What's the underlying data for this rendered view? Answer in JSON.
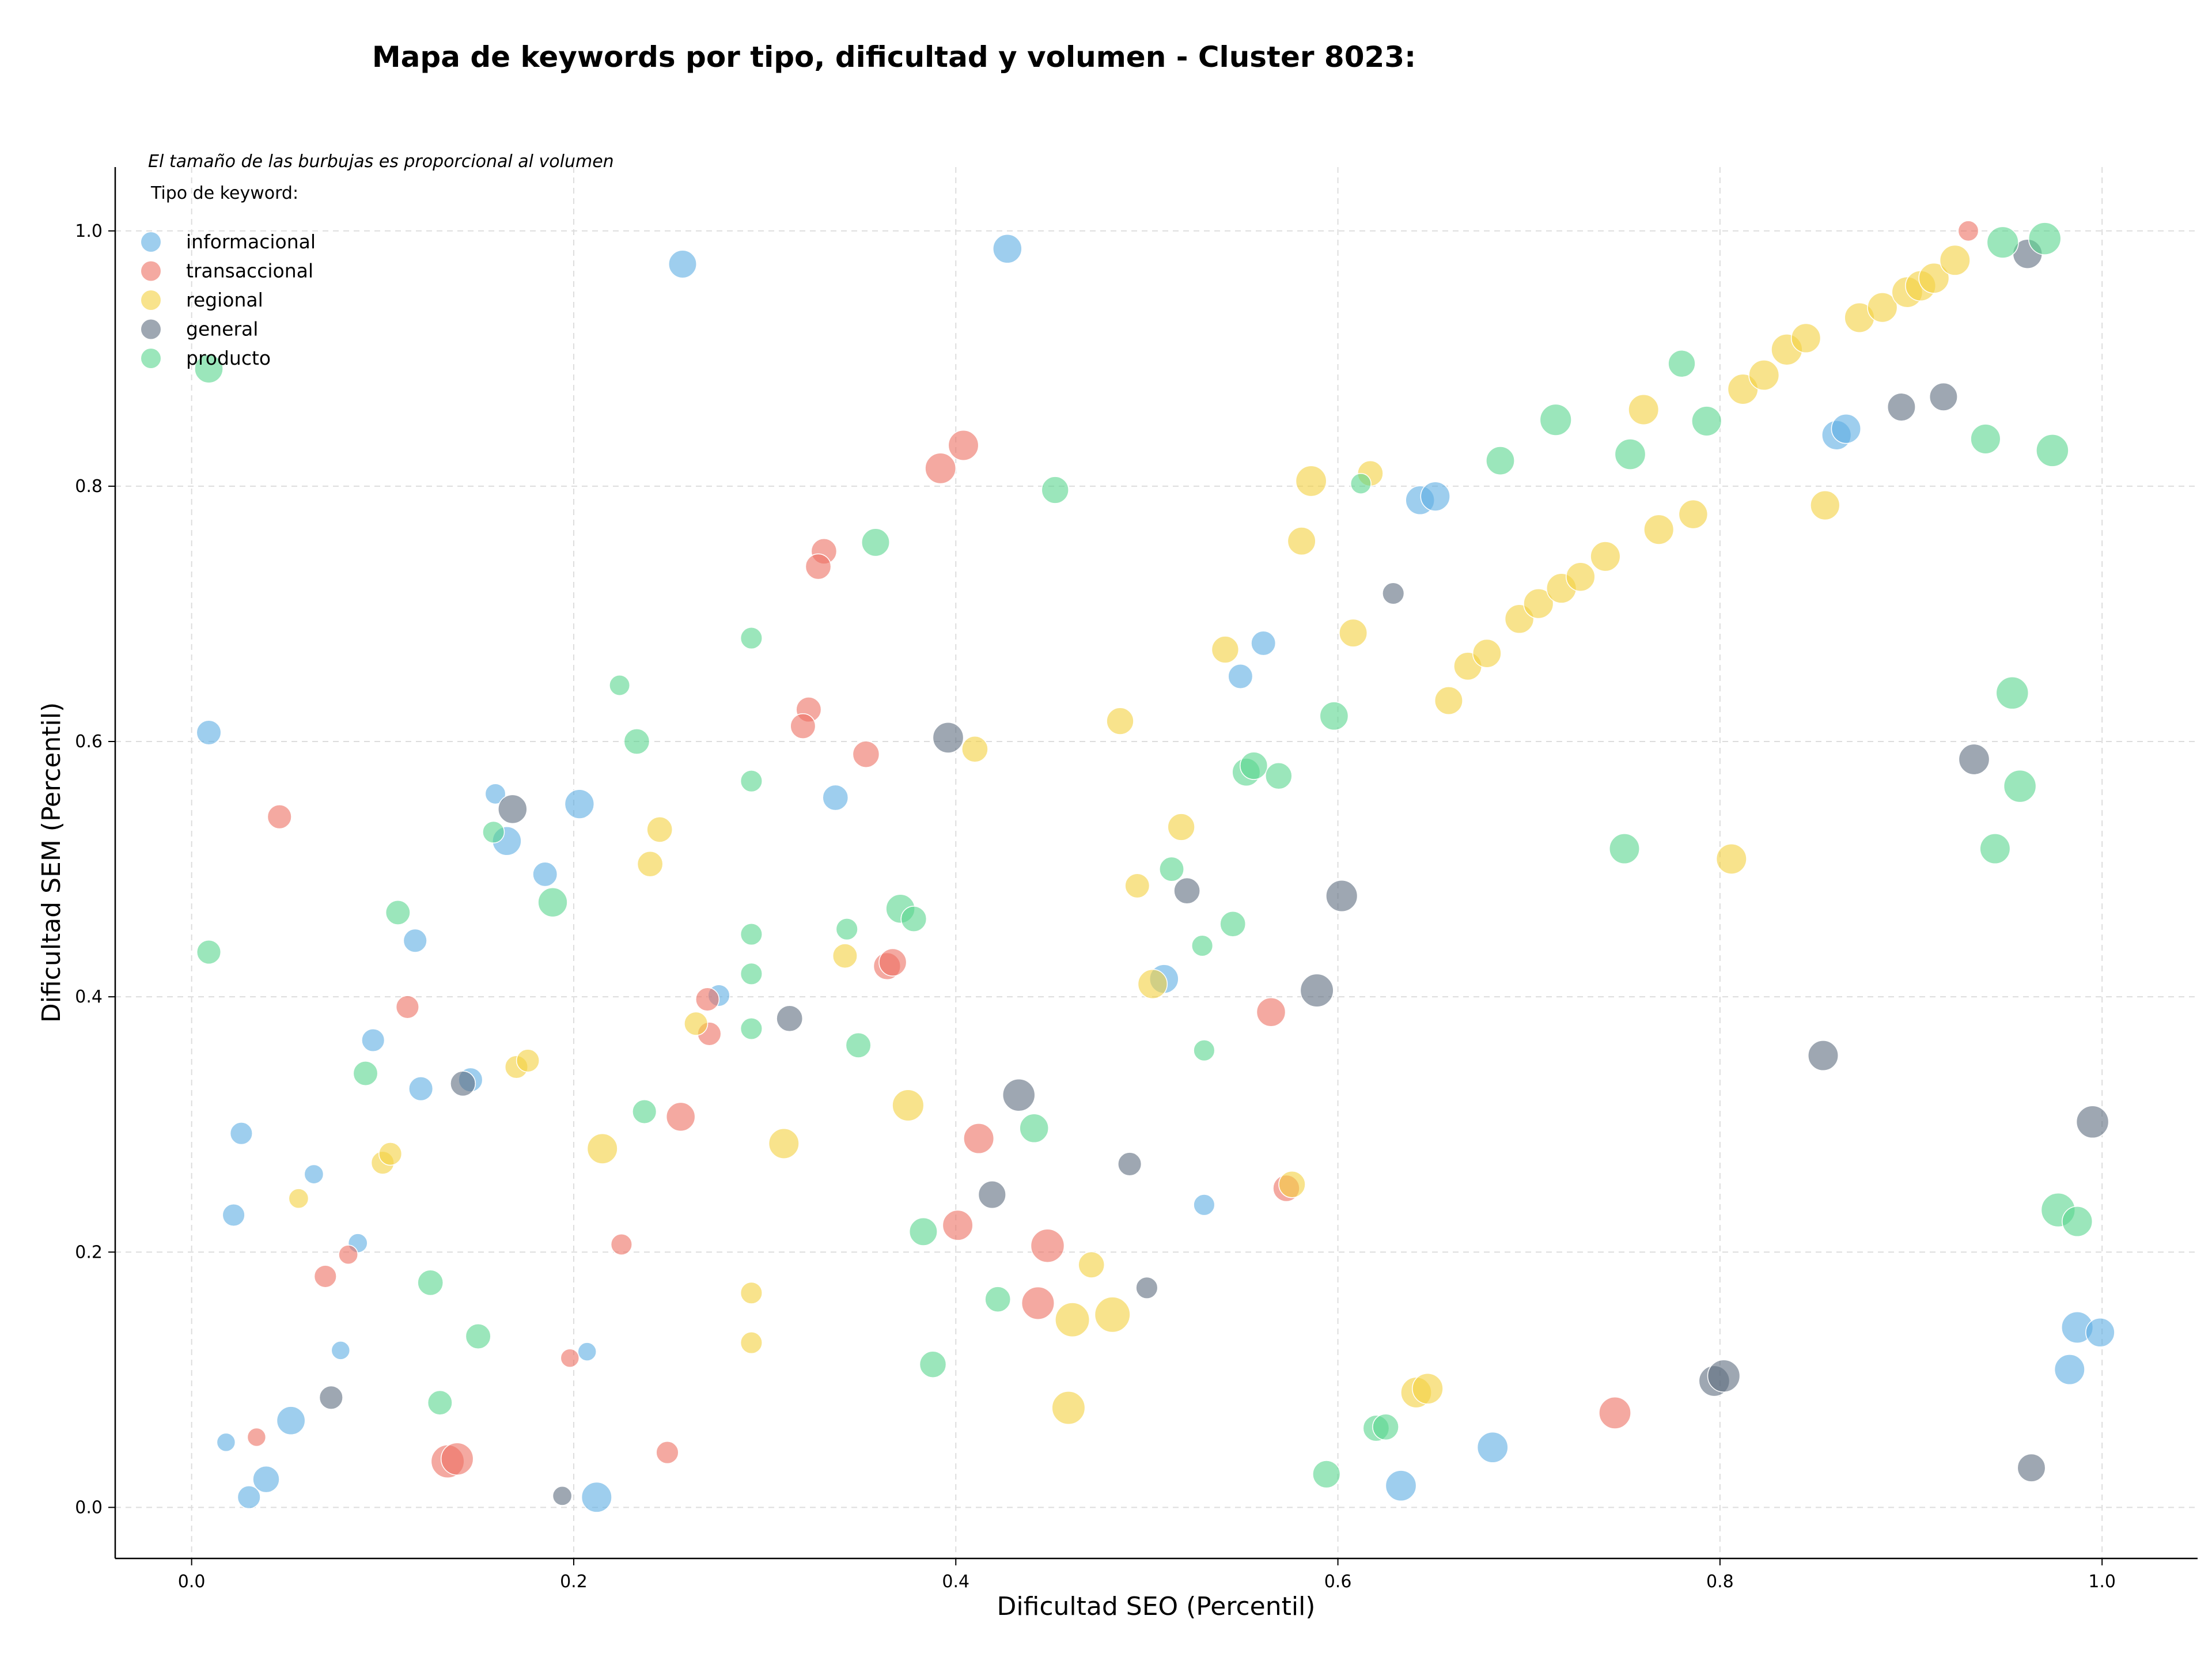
{
  "chart_data": {
    "type": "scatter",
    "title": "Mapa de keywords por tipo, dificultad y volumen - Cluster 8023:",
    "xlabel": "Dificultad SEO (Percentil)",
    "ylabel": "Dificultad SEM (Percentil)",
    "xlim": [
      -0.04,
      1.05
    ],
    "ylim": [
      -0.04,
      1.05
    ],
    "xticks": [
      "0.0",
      "0.2",
      "0.4",
      "0.6",
      "0.8",
      "1.0"
    ],
    "yticks": [
      "0.0",
      "0.2",
      "0.4",
      "0.6",
      "0.8",
      "1.0"
    ],
    "grid": true,
    "size_note": "El tamaño de las burbujas es proporcional al volumen",
    "legend_title": "Tipo de keyword:",
    "legend_position": "top-left",
    "series": [
      {
        "name": "informacional",
        "color": "#5DADE2",
        "points": [
          [
            0.257,
            0.974,
            3
          ],
          [
            0.427,
            0.986,
            3.2
          ],
          [
            0.009,
            0.607,
            2.3
          ],
          [
            0.203,
            0.551,
            3.3
          ],
          [
            0.165,
            0.522,
            3.2
          ],
          [
            0.159,
            0.559,
            1.6
          ],
          [
            0.185,
            0.496,
            2.3
          ],
          [
            0.337,
            0.556,
            2.5
          ],
          [
            0.117,
            0.444,
            2.1
          ],
          [
            0.095,
            0.366,
            2
          ],
          [
            0.12,
            0.328,
            2.2
          ],
          [
            0.146,
            0.335,
            2.2
          ],
          [
            0.026,
            0.293,
            1.9
          ],
          [
            0.022,
            0.229,
            1.9
          ],
          [
            0.064,
            0.261,
            1.4
          ],
          [
            0.087,
            0.207,
            1.4
          ],
          [
            0.078,
            0.123,
            1.3
          ],
          [
            0.207,
            0.122,
            1.3
          ],
          [
            0.018,
            0.051,
            1.3
          ],
          [
            0.039,
            0.022,
            2.7
          ],
          [
            0.052,
            0.068,
            3.1
          ],
          [
            0.03,
            0.008,
            2
          ],
          [
            0.212,
            0.008,
            3.5
          ],
          [
            0.276,
            0.401,
            1.8
          ],
          [
            0.509,
            0.414,
            3.2
          ],
          [
            0.561,
            0.677,
            2.3
          ],
          [
            0.549,
            0.651,
            2.3
          ],
          [
            0.53,
            0.237,
            1.7
          ],
          [
            0.643,
            0.789,
            3.2
          ],
          [
            0.651,
            0.792,
            3.3
          ],
          [
            0.861,
            0.84,
            3.3
          ],
          [
            0.866,
            0.845,
            3.3
          ],
          [
            0.633,
            0.017,
            3.6
          ],
          [
            0.681,
            0.047,
            3.6
          ],
          [
            0.987,
            0.141,
            3.8
          ],
          [
            0.999,
            0.137,
            3.2
          ],
          [
            0.983,
            0.108,
            3.5
          ]
        ]
      },
      {
        "name": "transaccional",
        "color": "#EC7063",
        "points": [
          [
            0.046,
            0.541,
            2.2
          ],
          [
            0.113,
            0.392,
            2
          ],
          [
            0.07,
            0.181,
            1.9
          ],
          [
            0.082,
            0.198,
            1.4
          ],
          [
            0.034,
            0.055,
            1.3
          ],
          [
            0.198,
            0.117,
            1.3
          ],
          [
            0.225,
            0.206,
            1.7
          ],
          [
            0.249,
            0.043,
            1.9
          ],
          [
            0.256,
            0.306,
            3.2
          ],
          [
            0.134,
            0.036,
            4.2
          ],
          [
            0.139,
            0.038,
            4
          ],
          [
            0.27,
            0.398,
            2.1
          ],
          [
            0.271,
            0.371,
            2.1
          ],
          [
            0.404,
            0.832,
            3.5
          ],
          [
            0.392,
            0.814,
            3.6
          ],
          [
            0.331,
            0.749,
            2.5
          ],
          [
            0.328,
            0.737,
            2.5
          ],
          [
            0.323,
            0.625,
            2.4
          ],
          [
            0.32,
            0.612,
            2.4
          ],
          [
            0.353,
            0.59,
            2.7
          ],
          [
            0.364,
            0.424,
            2.8
          ],
          [
            0.367,
            0.427,
            2.9
          ],
          [
            0.412,
            0.289,
            3.5
          ],
          [
            0.401,
            0.221,
            3.5
          ],
          [
            0.448,
            0.205,
            4.3
          ],
          [
            0.443,
            0.16,
            4.1
          ],
          [
            0.565,
            0.388,
            3.2
          ],
          [
            0.573,
            0.25,
            2.7
          ],
          [
            0.745,
            0.074,
            3.9
          ],
          [
            0.93,
            1.0,
            1.6
          ]
        ]
      },
      {
        "name": "regional",
        "color": "#F4D03F",
        "points": [
          [
            0.056,
            0.242,
            1.5
          ],
          [
            0.1,
            0.27,
            2
          ],
          [
            0.104,
            0.277,
            2
          ],
          [
            0.17,
            0.345,
            2
          ],
          [
            0.176,
            0.35,
            2
          ],
          [
            0.215,
            0.281,
            3.5
          ],
          [
            0.24,
            0.504,
            2.5
          ],
          [
            0.245,
            0.531,
            2.5
          ],
          [
            0.264,
            0.379,
            2.1
          ],
          [
            0.293,
            0.168,
            1.8
          ],
          [
            0.293,
            0.129,
            1.8
          ],
          [
            0.31,
            0.285,
            3.5
          ],
          [
            0.342,
            0.432,
            2.3
          ],
          [
            0.375,
            0.315,
            3.8
          ],
          [
            0.41,
            0.594,
            2.6
          ],
          [
            0.459,
            0.078,
            4.2
          ],
          [
            0.461,
            0.147,
            4.5
          ],
          [
            0.482,
            0.151,
            4.8
          ],
          [
            0.471,
            0.19,
            2.6
          ],
          [
            0.486,
            0.616,
            2.8
          ],
          [
            0.495,
            0.487,
            2.3
          ],
          [
            0.503,
            0.41,
            3.3
          ],
          [
            0.518,
            0.533,
            2.8
          ],
          [
            0.541,
            0.672,
            2.8
          ],
          [
            0.576,
            0.253,
            2.7
          ],
          [
            0.586,
            0.804,
            3.6
          ],
          [
            0.581,
            0.757,
            3
          ],
          [
            0.608,
            0.685,
            3
          ],
          [
            0.617,
            0.81,
            2.5
          ],
          [
            0.641,
            0.09,
            3.6
          ],
          [
            0.647,
            0.093,
            3.6
          ],
          [
            0.658,
            0.632,
            3
          ],
          [
            0.668,
            0.659,
            3
          ],
          [
            0.678,
            0.669,
            3.1
          ],
          [
            0.695,
            0.696,
            3.2
          ],
          [
            0.705,
            0.708,
            3.4
          ],
          [
            0.717,
            0.72,
            3.4
          ],
          [
            0.727,
            0.729,
            3.2
          ],
          [
            0.74,
            0.745,
            3.4
          ],
          [
            0.76,
            0.86,
            3.5
          ],
          [
            0.768,
            0.766,
            3.4
          ],
          [
            0.786,
            0.778,
            3.2
          ],
          [
            0.806,
            0.508,
            3.5
          ],
          [
            0.812,
            0.876,
            3.5
          ],
          [
            0.823,
            0.887,
            3.5
          ],
          [
            0.835,
            0.907,
            3.7
          ],
          [
            0.845,
            0.916,
            3.3
          ],
          [
            0.855,
            0.785,
            3.3
          ],
          [
            0.873,
            0.932,
            3.4
          ],
          [
            0.885,
            0.94,
            3.4
          ],
          [
            0.898,
            0.952,
            3.6
          ],
          [
            0.905,
            0.957,
            3.5
          ],
          [
            0.912,
            0.963,
            3.5
          ],
          [
            0.923,
            0.977,
            3.5
          ]
        ]
      },
      {
        "name": "general",
        "color": "#5D6D7E",
        "points": [
          [
            0.168,
            0.547,
            3.2
          ],
          [
            0.073,
            0.086,
            2.1
          ],
          [
            0.142,
            0.332,
            2.4
          ],
          [
            0.194,
            0.009,
            1.4
          ],
          [
            0.313,
            0.383,
            2.6
          ],
          [
            0.396,
            0.603,
            3.6
          ],
          [
            0.419,
            0.245,
            2.9
          ],
          [
            0.433,
            0.323,
            4
          ],
          [
            0.491,
            0.269,
            2.1
          ],
          [
            0.5,
            0.172,
            1.8
          ],
          [
            0.521,
            0.483,
            2.6
          ],
          [
            0.589,
            0.405,
            4.2
          ],
          [
            0.602,
            0.479,
            3.8
          ],
          [
            0.629,
            0.716,
            1.8
          ],
          [
            0.797,
            0.099,
            3.6
          ],
          [
            0.802,
            0.103,
            4
          ],
          [
            0.854,
            0.354,
            3.5
          ],
          [
            0.895,
            0.862,
            3
          ],
          [
            0.917,
            0.87,
            3
          ],
          [
            0.933,
            0.586,
            3.6
          ],
          [
            0.961,
            0.982,
            3.3
          ],
          [
            0.963,
            0.031,
            3
          ],
          [
            0.995,
            0.302,
            4
          ]
        ]
      },
      {
        "name": "producto",
        "color": "#58D68D",
        "points": [
          [
            0.009,
            0.892,
            3.1
          ],
          [
            0.009,
            0.435,
            2.2
          ],
          [
            0.108,
            0.466,
            2.3
          ],
          [
            0.091,
            0.34,
            2.3
          ],
          [
            0.125,
            0.176,
            2.5
          ],
          [
            0.13,
            0.082,
            2.3
          ],
          [
            0.15,
            0.134,
            2.4
          ],
          [
            0.158,
            0.529,
            1.8
          ],
          [
            0.189,
            0.474,
            3.3
          ],
          [
            0.224,
            0.644,
            1.6
          ],
          [
            0.233,
            0.6,
            2.5
          ],
          [
            0.237,
            0.31,
            2.2
          ],
          [
            0.293,
            0.681,
            1.8
          ],
          [
            0.293,
            0.569,
            1.8
          ],
          [
            0.293,
            0.449,
            1.8
          ],
          [
            0.293,
            0.418,
            1.8
          ],
          [
            0.293,
            0.375,
            1.8
          ],
          [
            0.343,
            0.453,
            1.8
          ],
          [
            0.349,
            0.362,
            2.4
          ],
          [
            0.358,
            0.756,
            3
          ],
          [
            0.371,
            0.469,
            3.2
          ],
          [
            0.378,
            0.461,
            2.5
          ],
          [
            0.383,
            0.216,
            3
          ],
          [
            0.388,
            0.112,
            2.7
          ],
          [
            0.422,
            0.163,
            2.5
          ],
          [
            0.441,
            0.297,
            3.2
          ],
          [
            0.452,
            0.797,
            2.8
          ],
          [
            0.513,
            0.5,
            2.3
          ],
          [
            0.529,
            0.44,
            1.7
          ],
          [
            0.53,
            0.358,
            1.7
          ],
          [
            0.545,
            0.457,
            2.5
          ],
          [
            0.552,
            0.576,
            3
          ],
          [
            0.556,
            0.581,
            2.9
          ],
          [
            0.569,
            0.573,
            2.7
          ],
          [
            0.598,
            0.62,
            3.1
          ],
          [
            0.594,
            0.026,
            2.9
          ],
          [
            0.612,
            0.802,
            1.6
          ],
          [
            0.62,
            0.062,
            2.6
          ],
          [
            0.625,
            0.063,
            2.6
          ],
          [
            0.685,
            0.82,
            3.1
          ],
          [
            0.714,
            0.852,
            3.8
          ],
          [
            0.75,
            0.516,
            3.5
          ],
          [
            0.753,
            0.825,
            3.6
          ],
          [
            0.78,
            0.896,
            2.8
          ],
          [
            0.793,
            0.851,
            3.4
          ],
          [
            0.939,
            0.837,
            3.4
          ],
          [
            0.944,
            0.516,
            3.5
          ],
          [
            0.948,
            0.991,
            3.8
          ],
          [
            0.953,
            0.638,
            4
          ],
          [
            0.957,
            0.565,
            4
          ],
          [
            0.97,
            0.994,
            4
          ],
          [
            0.974,
            0.828,
            4
          ],
          [
            0.977,
            0.233,
            4.4
          ],
          [
            0.987,
            0.224,
            3.5
          ]
        ]
      }
    ]
  }
}
